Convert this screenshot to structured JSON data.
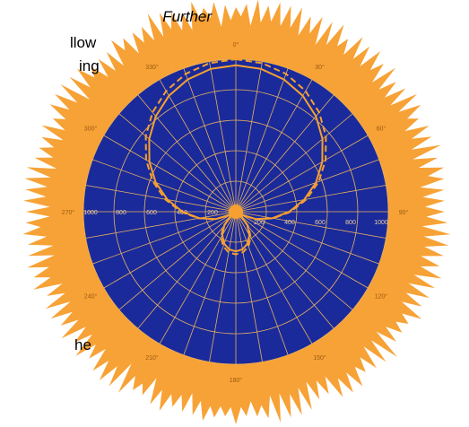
{
  "text_fragments": [
    "Further",
    "llow",
    "ing",
    "he"
  ],
  "chart_data": {
    "type": "polar",
    "x": [
      0,
      10,
      20,
      30,
      40,
      50,
      60,
      70,
      80,
      90,
      100,
      110,
      120,
      130,
      140,
      150,
      160,
      170,
      180,
      190,
      200,
      210,
      220,
      230,
      240,
      250,
      260,
      270,
      280,
      290,
      300,
      310,
      320,
      330,
      340,
      350
    ],
    "series": [
      {
        "color": "#f5a030",
        "dash": false,
        "values": [
          960,
          951,
          923,
          878,
          817,
          742,
          655,
          559,
          456,
          350,
          244,
          141,
          45,
          42,
          117,
          178,
          223,
          251,
          260,
          251,
          223,
          178,
          117,
          42,
          45,
          141,
          244,
          350,
          456,
          559,
          655,
          742,
          817,
          878,
          923,
          951
        ]
      },
      {
        "color": "#f5a030",
        "dash": true,
        "values": [
          1000,
          990,
          962,
          914,
          850,
          771,
          680,
          579,
          471,
          360,
          249,
          141,
          40,
          51,
          130,
          194,
          242,
          270,
          280,
          270,
          242,
          194,
          130,
          51,
          40,
          141,
          249,
          360,
          471,
          579,
          680,
          771,
          850,
          914,
          962,
          990
        ]
      }
    ],
    "rlim": [
      0,
      1000
    ],
    "rticks": [
      200,
      400,
      600,
      800,
      1000
    ],
    "angleticks": [
      {
        "value": 0,
        "label": "0°"
      },
      {
        "value": 30,
        "label": "30°"
      },
      {
        "value": 60,
        "label": "60°"
      },
      {
        "value": 90,
        "label": "90°"
      },
      {
        "value": 120,
        "label": "120°"
      },
      {
        "value": 150,
        "label": "150°"
      },
      {
        "value": 180,
        "label": "180°"
      },
      {
        "value": 210,
        "label": "210°"
      },
      {
        "value": 240,
        "label": "240°"
      },
      {
        "value": 270,
        "label": "270°"
      },
      {
        "value": 300,
        "label": "300°"
      },
      {
        "value": 330,
        "label": "330°"
      }
    ],
    "grid": true
  }
}
